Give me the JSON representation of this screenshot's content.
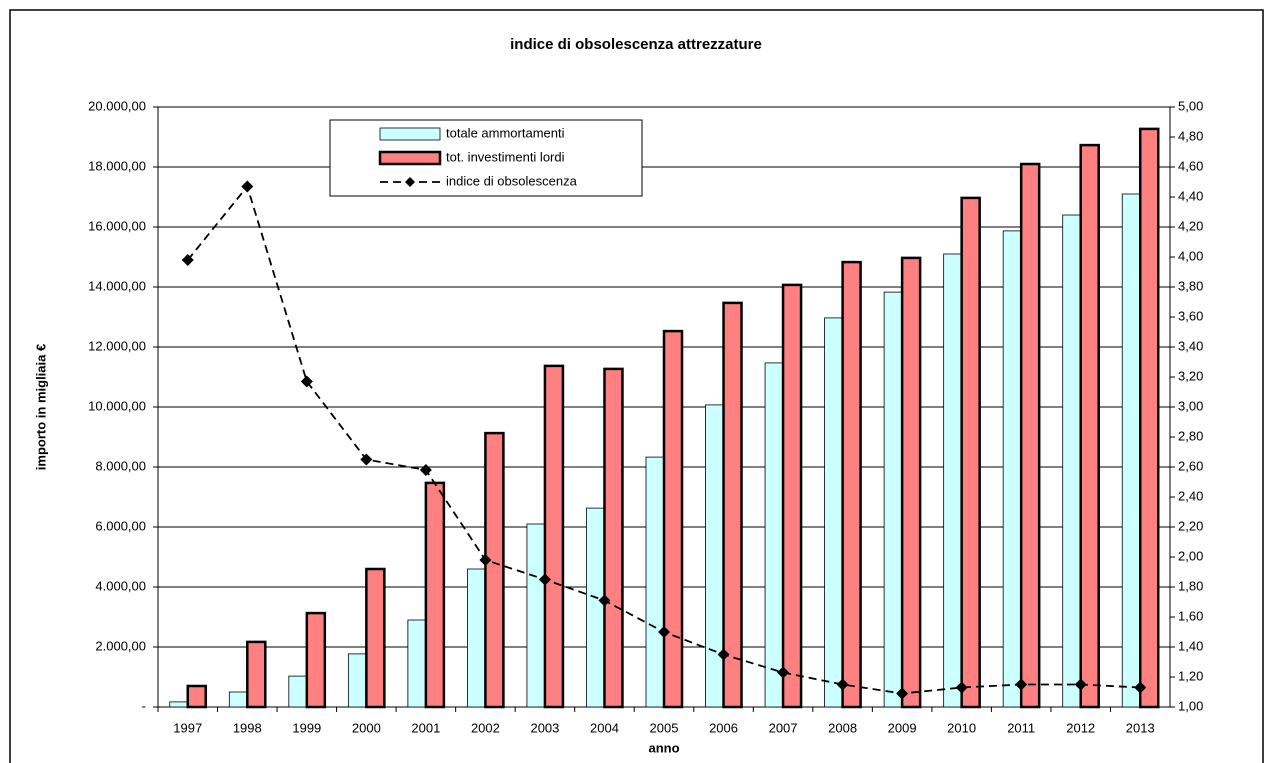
{
  "chart_data": {
    "type": "bar",
    "title": "indice di obsolescenza attrezzature",
    "y_label": "importo in migliaia €",
    "x_label": "anno",
    "categories": [
      "1997",
      "1998",
      "1999",
      "2000",
      "2001",
      "2002",
      "2003",
      "2004",
      "2005",
      "2006",
      "2007",
      "2008",
      "2009",
      "2010",
      "2011",
      "2012",
      "2013"
    ],
    "series": [
      {
        "name": "totale ammortamenti",
        "color": "#ccffff",
        "values": [
          170,
          500,
          1030,
          1770,
          2900,
          4600,
          6100,
          6630,
          8330,
          10070,
          11470,
          12970,
          13830,
          15100,
          15870,
          16400,
          17100
        ]
      },
      {
        "name": "tot. investimenti lordi",
        "color": "#ff8080",
        "values": [
          700,
          2170,
          3130,
          4600,
          7470,
          9130,
          11370,
          11270,
          12530,
          13470,
          14070,
          14830,
          14970,
          16970,
          18100,
          18730,
          19270
        ]
      },
      {
        "name": "indice di obsolescenza",
        "type": "line",
        "axis": "y2",
        "color": "#000000",
        "values": [
          3.98,
          4.47,
          3.17,
          2.65,
          2.58,
          1.98,
          1.85,
          1.71,
          1.5,
          1.35,
          1.23,
          1.15,
          1.09,
          1.13,
          1.15,
          1.15,
          1.13
        ]
      }
    ],
    "ylim": [
      0,
      20000
    ],
    "yticks": [
      {
        "value": 0,
        "label": "-"
      },
      {
        "value": 2000,
        "label": "2.000,00"
      },
      {
        "value": 4000,
        "label": "4.000,00"
      },
      {
        "value": 6000,
        "label": "6.000,00"
      },
      {
        "value": 8000,
        "label": "8.000,00"
      },
      {
        "value": 10000,
        "label": "10.000,00"
      },
      {
        "value": 12000,
        "label": "12.000,00"
      },
      {
        "value": 14000,
        "label": "14.000,00"
      },
      {
        "value": 16000,
        "label": "16.000,00"
      },
      {
        "value": 18000,
        "label": "18.000,00"
      },
      {
        "value": 20000,
        "label": "20.000,00"
      }
    ],
    "y2lim": [
      1,
      5
    ],
    "y2ticks": [
      {
        "value": 1,
        "label": "1,00"
      },
      {
        "value": 1.2,
        "label": "1,20"
      },
      {
        "value": 1.4,
        "label": "1,40"
      },
      {
        "value": 1.6,
        "label": "1,60"
      },
      {
        "value": 1.8,
        "label": "1,80"
      },
      {
        "value": 2,
        "label": "2,00"
      },
      {
        "value": 2.2,
        "label": "2,20"
      },
      {
        "value": 2.4,
        "label": "2,40"
      },
      {
        "value": 2.6,
        "label": "2,60"
      },
      {
        "value": 2.8,
        "label": "2,80"
      },
      {
        "value": 3,
        "label": "3,00"
      },
      {
        "value": 3.2,
        "label": "3,20"
      },
      {
        "value": 3.4,
        "label": "3,40"
      },
      {
        "value": 3.6,
        "label": "3,60"
      },
      {
        "value": 3.8,
        "label": "3,80"
      },
      {
        "value": 4,
        "label": "4,00"
      },
      {
        "value": 4.2,
        "label": "4,20"
      },
      {
        "value": 4.4,
        "label": "4,40"
      },
      {
        "value": 4.6,
        "label": "4,60"
      },
      {
        "value": 4.8,
        "label": "4,80"
      },
      {
        "value": 5,
        "label": "5,00"
      }
    ],
    "grid": true,
    "legend": "top"
  }
}
